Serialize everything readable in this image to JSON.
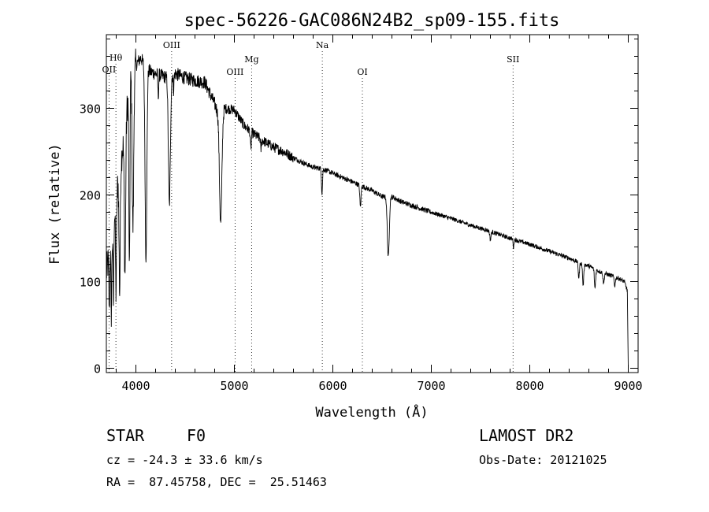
{
  "chart_data": {
    "type": "line",
    "title": "spec-56226-GAC086N24B2_sp09-155.fits",
    "xlabel": "Wavelength (Å)",
    "ylabel": "Flux (relative)",
    "xlim": [
      3700,
      9100
    ],
    "ylim": [
      -5,
      385
    ],
    "x_ticks": [
      4000,
      5000,
      6000,
      7000,
      8000,
      9000
    ],
    "y_ticks": [
      0,
      100,
      200,
      300
    ],
    "grid": false,
    "line_color": "#000000",
    "spectral_lines": [
      {
        "name": "OII",
        "wavelength": 3727
      },
      {
        "name": "Hθ",
        "wavelength": 3797
      },
      {
        "name": "OIII",
        "wavelength": 4363
      },
      {
        "name": "OIII",
        "wavelength": 5007
      },
      {
        "name": "Mg",
        "wavelength": 5175
      },
      {
        "name": "Na",
        "wavelength": 5893
      },
      {
        "name": "OI",
        "wavelength": 6300
      },
      {
        "name": "SII",
        "wavelength": 7830
      }
    ],
    "continuum": {
      "x": [
        3700,
        3760,
        3800,
        3850,
        3900,
        3950,
        4000,
        4050,
        4100,
        4150,
        4200,
        4300,
        4400,
        4500,
        4600,
        4700,
        4800,
        4850,
        4900,
        5000,
        5100,
        5200,
        5300,
        5400,
        5500,
        5600,
        5700,
        5800,
        5900,
        6000,
        6200,
        6400,
        6500,
        6600,
        6700,
        6800,
        7000,
        7200,
        7400,
        7600,
        7800,
        8000,
        8200,
        8400,
        8500,
        8600,
        8700,
        8800,
        8900,
        8960,
        8990,
        9000
      ],
      "y": [
        110,
        150,
        200,
        240,
        290,
        340,
        350,
        358,
        348,
        342,
        340,
        336,
        340,
        335,
        332,
        330,
        305,
        290,
        300,
        298,
        280,
        270,
        262,
        255,
        250,
        243,
        237,
        232,
        230,
        225,
        215,
        205,
        198,
        198,
        192,
        188,
        180,
        173,
        165,
        158,
        150,
        143,
        135,
        127,
        122,
        118,
        112,
        108,
        104,
        100,
        90,
        0
      ]
    },
    "absorption": [
      {
        "x": 3730,
        "depth": 60,
        "width": 4
      },
      {
        "x": 3750,
        "depth": 80,
        "width": 4
      },
      {
        "x": 3771,
        "depth": 90,
        "width": 4
      },
      {
        "x": 3798,
        "depth": 110,
        "width": 5
      },
      {
        "x": 3835,
        "depth": 140,
        "width": 6
      },
      {
        "x": 3889,
        "depth": 170,
        "width": 7
      },
      {
        "x": 3934,
        "depth": 220,
        "width": 5
      },
      {
        "x": 3970,
        "depth": 180,
        "width": 8
      },
      {
        "x": 4102,
        "depth": 220,
        "width": 9
      },
      {
        "x": 4227,
        "depth": 25,
        "width": 4
      },
      {
        "x": 4340,
        "depth": 150,
        "width": 10
      },
      {
        "x": 4383,
        "depth": 18,
        "width": 4
      },
      {
        "x": 4861,
        "depth": 125,
        "width": 12
      },
      {
        "x": 5167,
        "depth": 20,
        "width": 5
      },
      {
        "x": 5270,
        "depth": 12,
        "width": 4
      },
      {
        "x": 5890,
        "depth": 28,
        "width": 5
      },
      {
        "x": 6280,
        "depth": 25,
        "width": 6
      },
      {
        "x": 6563,
        "depth": 70,
        "width": 10
      },
      {
        "x": 7600,
        "depth": 10,
        "width": 6
      },
      {
        "x": 7835,
        "depth": 10,
        "width": 4
      },
      {
        "x": 8498,
        "depth": 18,
        "width": 6
      },
      {
        "x": 8542,
        "depth": 25,
        "width": 6
      },
      {
        "x": 8662,
        "depth": 22,
        "width": 6
      },
      {
        "x": 8750,
        "depth": 12,
        "width": 6
      },
      {
        "x": 8863,
        "depth": 10,
        "width": 6
      }
    ],
    "noise": [
      {
        "until": 4000,
        "amplitude": 20
      },
      {
        "until": 4900,
        "amplitude": 8
      },
      {
        "until": 5600,
        "amplitude": 6
      },
      {
        "until": 7000,
        "amplitude": 3
      },
      {
        "until": 9100,
        "amplitude": 2.5
      }
    ]
  },
  "info": {
    "object_class": "STAR",
    "subclass": "F0",
    "survey": "LAMOST DR2",
    "cz": "cz = -24.3 ± 33.6 km/s",
    "obs_date": "Obs-Date: 20121025",
    "coords": "RA =  87.45758, DEC =  25.51463"
  }
}
